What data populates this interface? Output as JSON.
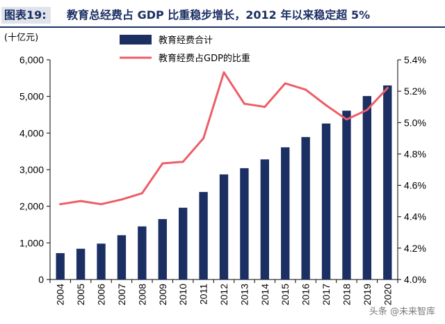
{
  "title": {
    "tag": "图表19:",
    "text": "教育总经费占 GDP 比重稳步增长，2012 年以来稳定超 5%"
  },
  "watermark": "头条 @未来智库",
  "colors": {
    "bar": "#1b2f63",
    "line": "#ee5d66",
    "title": "#1b2f63"
  },
  "chart_data": {
    "type": "bar",
    "unit_label": "(十亿元)",
    "categories": [
      "2004",
      "2005",
      "2006",
      "2007",
      "2008",
      "2009",
      "2010",
      "2011",
      "2012",
      "2013",
      "2014",
      "2015",
      "2016",
      "2017",
      "2018",
      "2019",
      "2020"
    ],
    "series": [
      {
        "name": "教育经费合计",
        "type": "bar",
        "axis": "left",
        "values": [
          720,
          840,
          980,
          1210,
          1450,
          1650,
          1960,
          2390,
          2870,
          3040,
          3280,
          3610,
          3890,
          4260,
          4610,
          5010,
          5300
        ]
      },
      {
        "name": "教育经费占GDP的比重",
        "type": "line",
        "axis": "right",
        "values": [
          4.48,
          4.5,
          4.48,
          4.51,
          4.55,
          4.74,
          4.75,
          4.9,
          5.32,
          5.12,
          5.1,
          5.25,
          5.21,
          5.11,
          5.02,
          5.08,
          5.22
        ]
      }
    ],
    "y_left": {
      "min": 0,
      "max": 6000,
      "step": 1000,
      "tick_labels": [
        "0",
        "1,000",
        "2,000",
        "3,000",
        "4,000",
        "5,000",
        "6,000"
      ]
    },
    "y_right": {
      "min": 4.0,
      "max": 5.4,
      "step": 0.2,
      "tick_labels": [
        "4.0%",
        "4.2%",
        "4.4%",
        "4.6%",
        "4.8%",
        "5.0%",
        "5.2%",
        "5.4%"
      ]
    },
    "legend_position": "top-center",
    "grid": false
  }
}
